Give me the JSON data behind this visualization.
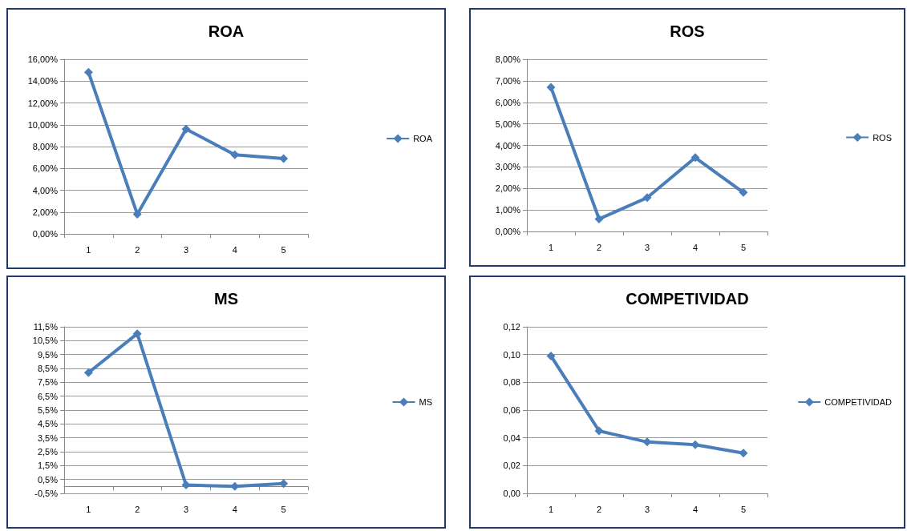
{
  "chart_data": [
    {
      "type": "line",
      "title": "ROA",
      "categories": [
        "1",
        "2",
        "3",
        "4",
        "5"
      ],
      "series": [
        {
          "name": "ROA",
          "color": "#4a7ebb",
          "values": [
            14.8,
            1.8,
            9.6,
            7.25,
            6.9
          ]
        }
      ],
      "ylim": [
        0,
        16
      ],
      "yticks": [
        {
          "value": 0,
          "label": "0,00%"
        },
        {
          "value": 2,
          "label": "2,00%"
        },
        {
          "value": 4,
          "label": "4,00%"
        },
        {
          "value": 6,
          "label": "6,00%"
        },
        {
          "value": 8,
          "label": "8,00%"
        },
        {
          "value": 10,
          "label": "10,00%"
        },
        {
          "value": 12,
          "label": "12,00%"
        },
        {
          "value": 14,
          "label": "14,00%"
        },
        {
          "value": 16,
          "label": "16,00%"
        }
      ],
      "grid": "y",
      "legend": "right",
      "marker": "diamond"
    },
    {
      "type": "line",
      "title": "ROS",
      "categories": [
        "1",
        "2",
        "3",
        "4",
        "5"
      ],
      "series": [
        {
          "name": "ROS",
          "color": "#4a7ebb",
          "values": [
            6.7,
            0.58,
            1.57,
            3.43,
            1.81
          ]
        }
      ],
      "ylim": [
        0,
        8
      ],
      "yticks": [
        {
          "value": 0,
          "label": "0,00%"
        },
        {
          "value": 1,
          "label": "1,00%"
        },
        {
          "value": 2,
          "label": "2,00%"
        },
        {
          "value": 3,
          "label": "3,00%"
        },
        {
          "value": 4,
          "label": "4,00%"
        },
        {
          "value": 5,
          "label": "5,00%"
        },
        {
          "value": 6,
          "label": "6,00%"
        },
        {
          "value": 7,
          "label": "7,00%"
        },
        {
          "value": 8,
          "label": "8,00%"
        }
      ],
      "grid": "y",
      "legend": "right",
      "marker": "diamond"
    },
    {
      "type": "line",
      "title": "MS",
      "categories": [
        "1",
        "2",
        "3",
        "4",
        "5"
      ],
      "series": [
        {
          "name": "MS",
          "color": "#4a7ebb",
          "values": [
            8.2,
            11.0,
            0.1,
            0.0,
            0.2
          ]
        }
      ],
      "ylim": [
        -0.5,
        11.5
      ],
      "yticks": [
        {
          "value": -0.5,
          "label": "-0,5%"
        },
        {
          "value": 0.5,
          "label": "0,5%"
        },
        {
          "value": 1.5,
          "label": "1,5%"
        },
        {
          "value": 2.5,
          "label": "2,5%"
        },
        {
          "value": 3.5,
          "label": "3,5%"
        },
        {
          "value": 4.5,
          "label": "4,5%"
        },
        {
          "value": 5.5,
          "label": "5,5%"
        },
        {
          "value": 6.5,
          "label": "6,5%"
        },
        {
          "value": 7.5,
          "label": "7,5%"
        },
        {
          "value": 8.5,
          "label": "8,5%"
        },
        {
          "value": 9.5,
          "label": "9,5%"
        },
        {
          "value": 10.5,
          "label": "10,5%"
        },
        {
          "value": 11.5,
          "label": "11,5%"
        }
      ],
      "grid": "y",
      "legend": "right",
      "marker": "diamond"
    },
    {
      "type": "line",
      "title": "COMPETIVIDAD",
      "categories": [
        "1",
        "2",
        "3",
        "4",
        "5"
      ],
      "series": [
        {
          "name": "COMPETIVIDAD",
          "color": "#4a7ebb",
          "values": [
            0.099,
            0.045,
            0.037,
            0.035,
            0.029
          ]
        }
      ],
      "ylim": [
        0,
        0.12
      ],
      "yticks": [
        {
          "value": 0,
          "label": "0,00"
        },
        {
          "value": 0.02,
          "label": "0,02"
        },
        {
          "value": 0.04,
          "label": "0,04"
        },
        {
          "value": 0.06,
          "label": "0,06"
        },
        {
          "value": 0.08,
          "label": "0,08"
        },
        {
          "value": 0.1,
          "label": "0,10"
        },
        {
          "value": 0.12,
          "label": "0,12"
        }
      ],
      "grid": "y",
      "legend": "right",
      "marker": "diamond"
    }
  ]
}
